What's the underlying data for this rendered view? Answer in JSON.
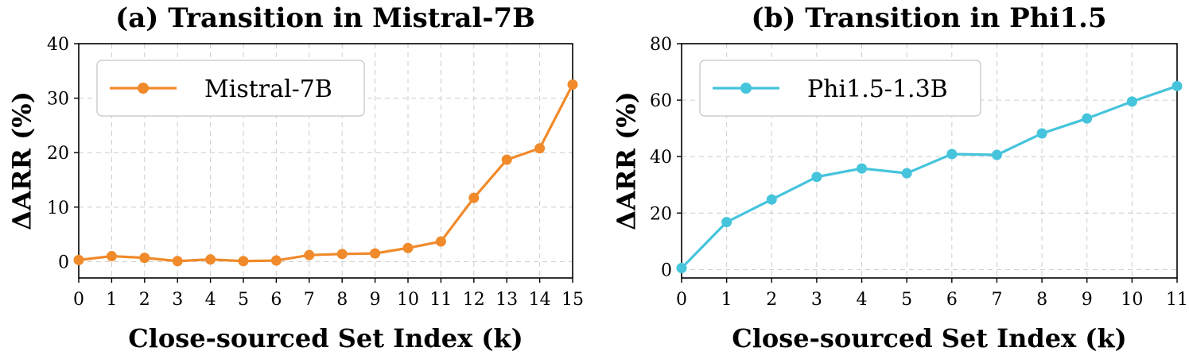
{
  "chart_data": [
    {
      "type": "line",
      "title": "(a) Transition in Mistral-7B",
      "xlabel": "Close-sourced Set Index (k)",
      "ylabel": "ΔARR (%)",
      "xlim": [
        0,
        15
      ],
      "ylim": [
        -3,
        40
      ],
      "x_ticks": [
        0,
        1,
        2,
        3,
        4,
        5,
        6,
        7,
        8,
        9,
        10,
        11,
        12,
        13,
        14,
        15
      ],
      "y_ticks": [
        0,
        10,
        20,
        30,
        40
      ],
      "grid": true,
      "legend_position": "top-left",
      "series": [
        {
          "name": "Mistral-7B",
          "color": "#f08a2a",
          "x": [
            0,
            1,
            2,
            3,
            4,
            5,
            6,
            7,
            8,
            9,
            10,
            11,
            12,
            13,
            14,
            15
          ],
          "values": [
            0.3,
            1.0,
            0.7,
            0.1,
            0.4,
            0.1,
            0.2,
            1.2,
            1.4,
            1.5,
            2.5,
            3.7,
            11.7,
            18.7,
            20.8,
            32.5
          ]
        }
      ]
    },
    {
      "type": "line",
      "title": "(b) Transition in Phi1.5",
      "xlabel": "Close-sourced Set Index (k)",
      "ylabel": "ΔARR (%)",
      "xlim": [
        0,
        11
      ],
      "ylim": [
        -3,
        80
      ],
      "x_ticks": [
        0,
        1,
        2,
        3,
        4,
        5,
        6,
        7,
        8,
        9,
        10,
        11
      ],
      "y_ticks": [
        0,
        20,
        40,
        60,
        80
      ],
      "grid": true,
      "legend_position": "top-left",
      "series": [
        {
          "name": "Phi1.5-1.3B",
          "color": "#45c4dc",
          "x": [
            0,
            1,
            2,
            3,
            4,
            5,
            6,
            7,
            8,
            9,
            10,
            11
          ],
          "values": [
            0.5,
            16.8,
            24.8,
            32.8,
            35.8,
            34.1,
            40.9,
            40.6,
            48.2,
            53.5,
            59.5,
            65.0
          ]
        }
      ]
    }
  ]
}
